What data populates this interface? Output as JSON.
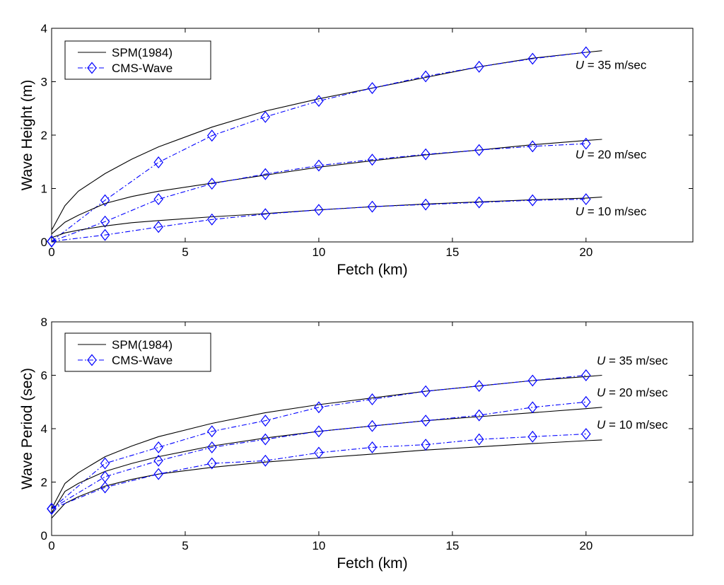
{
  "colors": {
    "spm": "#000000",
    "cms": "#0000ff",
    "axes": "#000000",
    "background": "#ffffff"
  },
  "chart_data": [
    {
      "type": "line",
      "title": "",
      "xlabel": "Fetch (km)",
      "ylabel": "Wave Height (m)",
      "xlim": [
        0,
        24
      ],
      "ylim": [
        0,
        4
      ],
      "xticks": [
        "0",
        "5",
        "10",
        "15",
        "20"
      ],
      "yticks": [
        "0",
        "1",
        "2",
        "3",
        "4"
      ],
      "legend": {
        "location": "top-left",
        "entries": [
          "SPM(1984)",
          "CMS-Wave"
        ]
      },
      "series": [
        {
          "name": "SPM(1984)",
          "group": "U = 35 m/sec",
          "style": "solid",
          "x": [
            0,
            0.5,
            1,
            2,
            3,
            4,
            6,
            8,
            10,
            12,
            14,
            16,
            18,
            20,
            20.6
          ],
          "y": [
            0.22,
            0.68,
            0.95,
            1.28,
            1.55,
            1.78,
            2.15,
            2.45,
            2.68,
            2.88,
            3.08,
            3.28,
            3.44,
            3.55,
            3.58
          ]
        },
        {
          "name": "CMS-Wave",
          "group": "U = 35 m/sec",
          "style": "dashdot-diamond",
          "x": [
            0,
            2,
            4,
            6,
            8,
            10,
            12,
            14,
            16,
            18,
            20
          ],
          "y": [
            0.01,
            0.78,
            1.49,
            1.99,
            2.34,
            2.64,
            2.88,
            3.1,
            3.28,
            3.43,
            3.55
          ]
        },
        {
          "name": "SPM(1984)",
          "group": "U = 20 m/sec",
          "style": "solid",
          "x": [
            0,
            0.5,
            1,
            2,
            3,
            4,
            6,
            8,
            10,
            12,
            14,
            16,
            18,
            20,
            20.6
          ],
          "y": [
            0.15,
            0.37,
            0.5,
            0.72,
            0.85,
            0.95,
            1.1,
            1.25,
            1.4,
            1.52,
            1.63,
            1.72,
            1.82,
            1.9,
            1.92
          ]
        },
        {
          "name": "CMS-Wave",
          "group": "U = 20 m/sec",
          "style": "dashdot-diamond",
          "x": [
            0,
            2,
            4,
            6,
            8,
            10,
            12,
            14,
            16,
            18,
            20
          ],
          "y": [
            0.01,
            0.38,
            0.8,
            1.09,
            1.27,
            1.43,
            1.54,
            1.64,
            1.72,
            1.79,
            1.84
          ]
        },
        {
          "name": "SPM(1984)",
          "group": "U = 10 m/sec",
          "style": "solid",
          "x": [
            0,
            0.5,
            1,
            2,
            3,
            4,
            6,
            8,
            10,
            12,
            14,
            16,
            18,
            20,
            20.6
          ],
          "y": [
            0.08,
            0.17,
            0.22,
            0.3,
            0.36,
            0.4,
            0.47,
            0.53,
            0.6,
            0.66,
            0.71,
            0.75,
            0.79,
            0.82,
            0.84
          ]
        },
        {
          "name": "CMS-Wave",
          "group": "U = 10 m/sec",
          "style": "dashdot-diamond",
          "x": [
            0,
            2,
            4,
            6,
            8,
            10,
            12,
            14,
            16,
            18,
            20
          ],
          "y": [
            0.01,
            0.13,
            0.28,
            0.42,
            0.52,
            0.6,
            0.66,
            0.7,
            0.74,
            0.78,
            0.8
          ]
        }
      ],
      "annotations": [
        {
          "text": "U",
          "rest": " = 35 m/sec",
          "at": [
            19.6,
            3.24
          ]
        },
        {
          "text": "U",
          "rest": " = 20 m/sec",
          "at": [
            19.6,
            1.56
          ]
        },
        {
          "text": "U",
          "rest": " = 10 m/sec",
          "at": [
            19.6,
            0.5
          ]
        }
      ]
    },
    {
      "type": "line",
      "title": "",
      "xlabel": "Fetch (km)",
      "ylabel": "Wave Period (sec)",
      "xlim": [
        0,
        24
      ],
      "ylim": [
        0,
        8
      ],
      "xticks": [
        "0",
        "5",
        "10",
        "15",
        "20"
      ],
      "yticks": [
        "0",
        "2",
        "4",
        "6",
        "8"
      ],
      "legend": {
        "location": "top-left",
        "entries": [
          "SPM(1984)",
          "CMS-Wave"
        ]
      },
      "series": [
        {
          "name": "SPM(1984)",
          "group": "U = 35 m/sec",
          "style": "solid",
          "x": [
            0,
            0.5,
            1,
            2,
            3,
            4,
            6,
            8,
            10,
            12,
            14,
            16,
            18,
            20,
            20.6
          ],
          "y": [
            1.0,
            1.95,
            2.35,
            2.95,
            3.35,
            3.7,
            4.2,
            4.6,
            4.9,
            5.15,
            5.4,
            5.6,
            5.8,
            5.95,
            6.0
          ]
        },
        {
          "name": "CMS-Wave",
          "group": "U = 35 m/sec",
          "style": "dashdot-diamond",
          "x": [
            0,
            2,
            4,
            6,
            8,
            10,
            12,
            14,
            16,
            18,
            20
          ],
          "y": [
            1.0,
            2.7,
            3.3,
            3.9,
            4.3,
            4.8,
            5.1,
            5.4,
            5.6,
            5.8,
            6.0
          ]
        },
        {
          "name": "SPM(1984)",
          "group": "U = 20 m/sec",
          "style": "solid",
          "x": [
            0,
            0.5,
            1,
            2,
            3,
            4,
            6,
            8,
            10,
            12,
            14,
            16,
            18,
            20,
            20.6
          ],
          "y": [
            0.85,
            1.65,
            1.95,
            2.4,
            2.7,
            2.95,
            3.35,
            3.65,
            3.9,
            4.1,
            4.3,
            4.45,
            4.6,
            4.75,
            4.8
          ]
        },
        {
          "name": "CMS-Wave",
          "group": "U = 20 m/sec",
          "style": "dashdot-diamond",
          "x": [
            0,
            2,
            4,
            6,
            8,
            10,
            12,
            14,
            16,
            18,
            20
          ],
          "y": [
            1.0,
            2.2,
            2.8,
            3.3,
            3.6,
            3.9,
            4.1,
            4.3,
            4.5,
            4.8,
            5.0
          ]
        },
        {
          "name": "SPM(1984)",
          "group": "U = 10 m/sec",
          "style": "solid",
          "x": [
            0,
            0.5,
            1,
            2,
            3,
            4,
            6,
            8,
            10,
            12,
            14,
            16,
            18,
            20,
            20.6
          ],
          "y": [
            0.65,
            1.2,
            1.45,
            1.85,
            2.1,
            2.3,
            2.55,
            2.75,
            2.9,
            3.05,
            3.2,
            3.32,
            3.44,
            3.55,
            3.58
          ]
        },
        {
          "name": "CMS-Wave",
          "group": "U = 10 m/sec",
          "style": "dashdot-diamond",
          "x": [
            0,
            2,
            4,
            6,
            8,
            10,
            12,
            14,
            16,
            18,
            20
          ],
          "y": [
            1.0,
            1.8,
            2.3,
            2.7,
            2.8,
            3.1,
            3.3,
            3.4,
            3.6,
            3.7,
            3.8
          ]
        }
      ],
      "annotations": [
        {
          "text": "U",
          "rest": " = 35 m/sec",
          "at": [
            20.4,
            6.4
          ]
        },
        {
          "text": "U",
          "rest": " = 20 m/sec",
          "at": [
            20.4,
            5.2
          ]
        },
        {
          "text": "U",
          "rest": " = 10 m/sec",
          "at": [
            20.4,
            4.0
          ]
        }
      ]
    }
  ]
}
